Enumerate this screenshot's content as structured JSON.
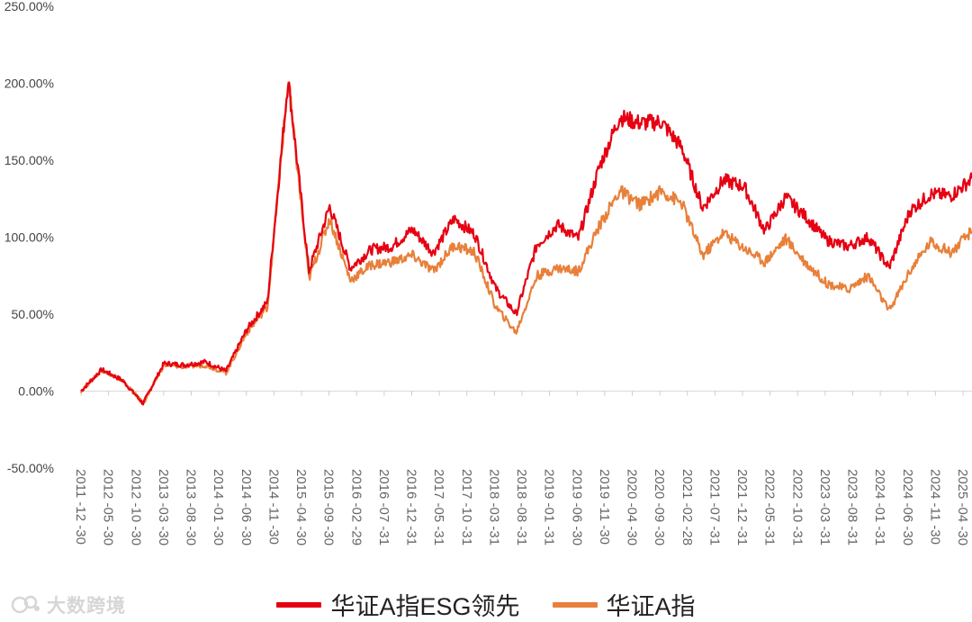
{
  "chart_data": {
    "type": "line",
    "title": "",
    "xlabel": "",
    "ylabel": "",
    "ylim": [
      -0.5,
      2.5
    ],
    "y_tick_values": [
      -0.5,
      0,
      0.5,
      1,
      1.5,
      2,
      2.5
    ],
    "y_tick_labels": [
      "-50.00%",
      "0.00%",
      "50.00%",
      "100.00%",
      "150.00%",
      "200.00%",
      "250.00%"
    ],
    "x_tick_labels": [
      "2011-12-30",
      "2012-05-30",
      "2012-10-30",
      "2013-03-30",
      "2013-08-30",
      "2014-01-30",
      "2014-06-30",
      "2014-11-30",
      "2015-04-30",
      "2015-09-30",
      "2016-02-29",
      "2016-07-31",
      "2016-12-31",
      "2017-05-31",
      "2017-10-31",
      "2018-03-31",
      "2018-08-31",
      "2019-01-31",
      "2019-06-30",
      "2019-11-30",
      "2020-04-30",
      "2020-09-30",
      "2021-02-28",
      "2021-07-31",
      "2021-12-31",
      "2022-05-31",
      "2022-10-31",
      "2023-03-31",
      "2023-08-31",
      "2024-01-31",
      "2024-06-30",
      "2024-11-30",
      "2025-04-30"
    ],
    "grid": false,
    "legend_position": "bottom",
    "series": [
      {
        "name": "华证A指ESG领先",
        "color": "#e60012",
        "values": [
          0.0,
          0.14,
          0.07,
          -0.08,
          0.18,
          0.17,
          0.19,
          0.13,
          0.4,
          0.58,
          2.03,
          0.78,
          1.2,
          0.8,
          0.92,
          0.94,
          1.05,
          0.9,
          1.12,
          1.02,
          0.67,
          0.5,
          0.95,
          1.08,
          0.99,
          1.45,
          1.78,
          1.74,
          1.75,
          1.58,
          1.19,
          1.37,
          1.33,
          1.04,
          1.26,
          1.13,
          0.98,
          0.94,
          1.0,
          0.8,
          1.17,
          1.28,
          1.27,
          1.38
        ]
      },
      {
        "name": "华证A指",
        "color": "#e8803a",
        "values": [
          0.0,
          0.14,
          0.07,
          -0.08,
          0.17,
          0.16,
          0.17,
          0.12,
          0.38,
          0.55,
          2.02,
          0.73,
          1.12,
          0.72,
          0.82,
          0.84,
          0.88,
          0.78,
          0.95,
          0.9,
          0.55,
          0.38,
          0.75,
          0.8,
          0.78,
          1.07,
          1.3,
          1.21,
          1.3,
          1.22,
          0.88,
          1.03,
          0.93,
          0.84,
          0.99,
          0.83,
          0.7,
          0.66,
          0.75,
          0.52,
          0.78,
          0.97,
          0.9,
          1.04
        ]
      }
    ]
  },
  "watermark": {
    "text": "大数跨境"
  }
}
